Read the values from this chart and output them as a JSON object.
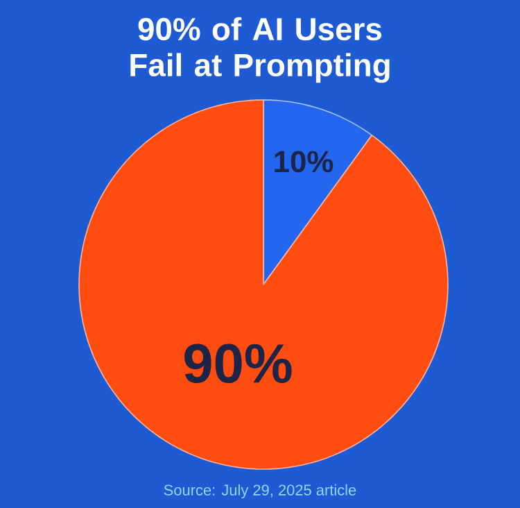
{
  "chart_data": {
    "type": "pie",
    "title": "90% of AI Users Fail at Prompting",
    "categories": [
      null,
      null
    ],
    "values": [
      10,
      90
    ],
    "colors": [
      "#2566ee",
      "#ff4c10"
    ],
    "value_labels": [
      "10%",
      "90%"
    ],
    "annotations": [
      "Source: July 29, 2025 article"
    ]
  }
}
